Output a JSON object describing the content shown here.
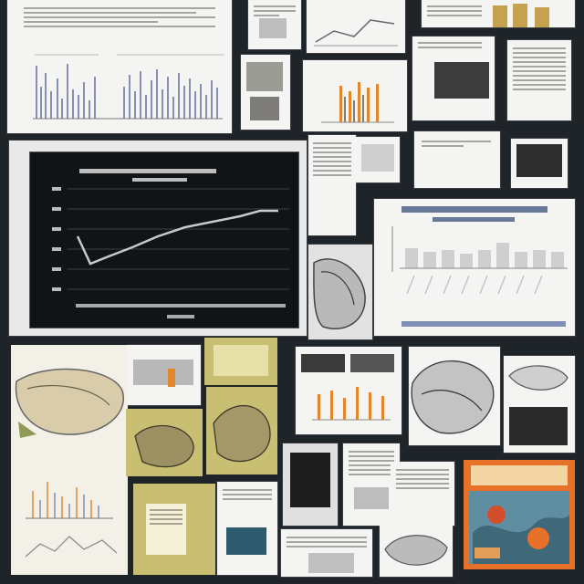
{
  "scene": {
    "background": "#1f2428",
    "accent_colors": {
      "paper": "#f4f4f2",
      "dark_panel": "#111417",
      "orange_cover": "#e8712a",
      "orange_bar": "#e3872c",
      "olive_tile": "#c9bf73",
      "line_color": "#c8c8c8",
      "blue_bar": "#7f8fb5"
    }
  },
  "tiles": [
    {
      "name": "report-top-left",
      "kind": "document-with-bar-chart"
    },
    {
      "name": "small-chart-top-center",
      "kind": "document-with-line-chart"
    },
    {
      "name": "bar-gallery-top-right",
      "kind": "document-with-bars"
    },
    {
      "name": "dark-monitor-line-chart",
      "kind": "dark-line-chart"
    },
    {
      "name": "wide-bar-chart-right",
      "kind": "document-with-bar-chart"
    },
    {
      "name": "diagram-left-bottom",
      "kind": "illustration-diagram"
    },
    {
      "name": "orange-cover-bottom-right",
      "kind": "colorful-cover"
    }
  ]
}
